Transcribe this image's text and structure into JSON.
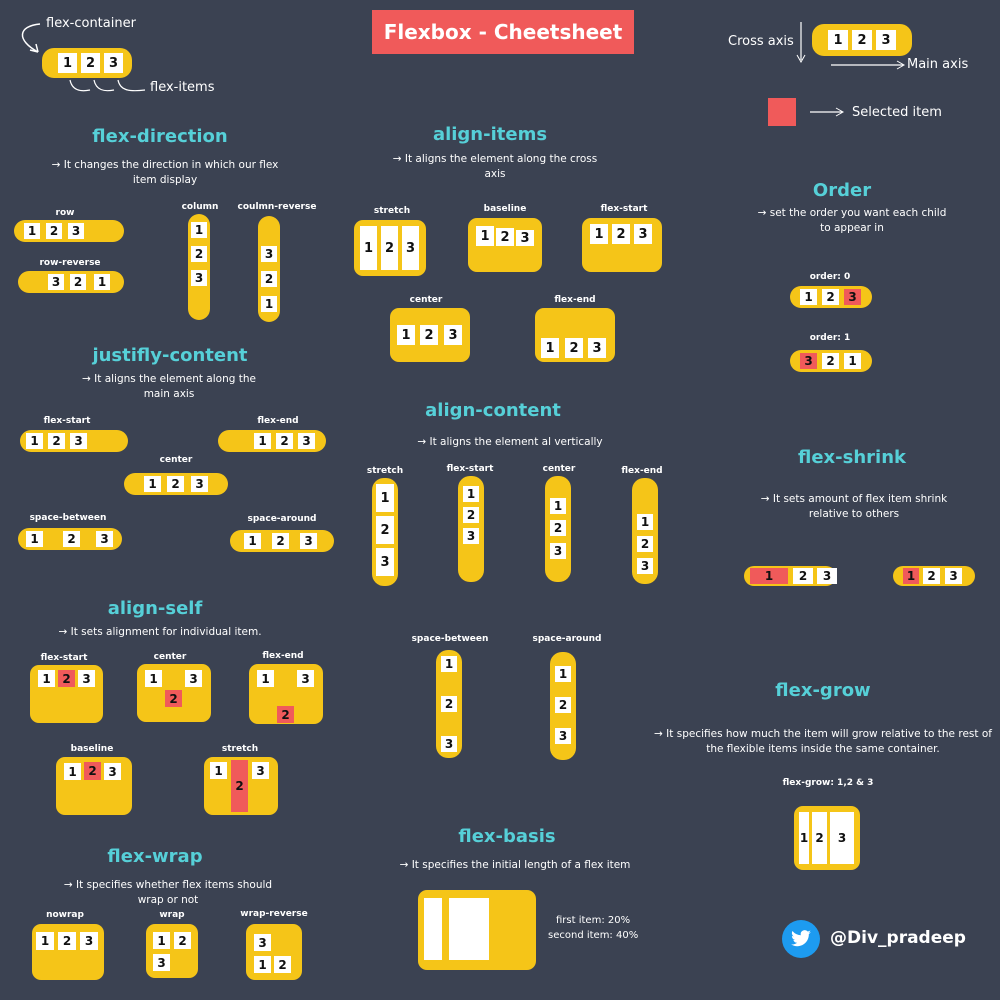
{
  "header": {
    "title": "Flexbox - Cheetsheet",
    "flex_container": "flex-container",
    "flex_items": "flex-items",
    "cross_axis": "Cross axis",
    "main_axis": "Main axis",
    "selected_item": "Selected item"
  },
  "sections": {
    "flex_direction": {
      "title": "flex-direction",
      "desc": "→ It changes the direction in which our flex item display",
      "row": "row",
      "row_reverse": "row-reverse",
      "column": "column",
      "column_reverse": "coulmn-reverse"
    },
    "align_items": {
      "title": "align-items",
      "desc": "→ It aligns the element along the cross  axis",
      "stretch": "stretch",
      "baseline": "baseline",
      "flex_start": "flex-start",
      "center": "center",
      "flex_end": "flex-end"
    },
    "order": {
      "title": "Order",
      "desc": "→ set the order you want each child to appear in",
      "order0": "order: 0",
      "order1": "order: 1"
    },
    "justify_content": {
      "title": "justifly-content",
      "desc": "→ It aligns the element along the main axis",
      "flex_start": "flex-start",
      "flex_end": "flex-end",
      "center": "center",
      "space_between": "space-between",
      "space_around": "space-around"
    },
    "align_content": {
      "title": "align-content",
      "desc": "→ It aligns the element al vertically",
      "stretch": "stretch",
      "flex_start": "flex-start",
      "center": "center",
      "flex_end": "flex-end",
      "space_between": "space-between",
      "space_around": "space-around"
    },
    "flex_shrink": {
      "title": "flex-shrink",
      "desc": "→ It sets amount of flex item shrink relative to others"
    },
    "align_self": {
      "title": "align-self",
      "desc": "→ It sets alignment for individual item.",
      "flex_start": "flex-start",
      "center": "center",
      "flex_end": "flex-end",
      "baseline": "baseline",
      "stretch": "stretch"
    },
    "flex_grow": {
      "title": "flex-grow",
      "desc": "→ It specifies how much the item will grow relative to the rest of the flexible items inside the same container.",
      "label": "flex-grow: 1,2 & 3"
    },
    "flex_wrap": {
      "title": "flex-wrap",
      "desc": "→ It specifies whether flex items should wrap or not",
      "nowrap": "nowrap",
      "wrap": "wrap",
      "wrap_reverse": "wrap-reverse"
    },
    "flex_basis": {
      "title": "flex-basis",
      "desc": "→ It specifies the initial length of a flex item",
      "first": "first item: 20%",
      "second": "second item: 40%"
    }
  },
  "items": {
    "one": "1",
    "two": "2",
    "three": "3"
  },
  "footer": {
    "handle": "@Div_pradeep",
    "icon": "twitter-bird-icon"
  },
  "colors": {
    "background": "#3b4252",
    "container": "#f5c518",
    "highlight": "#f05a5a",
    "heading": "#56d0d8",
    "twitter": "#1d9bf0"
  }
}
